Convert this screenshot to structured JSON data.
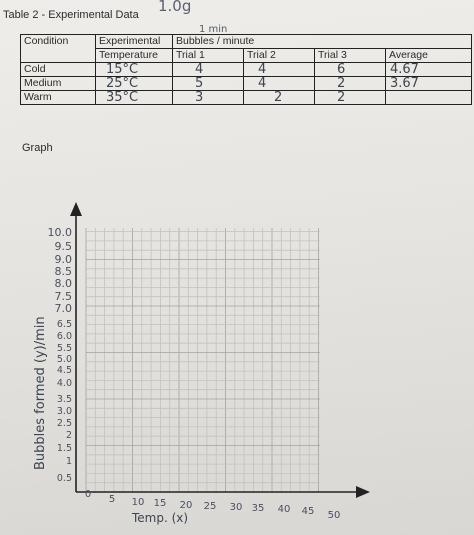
{
  "table_title": "Table 2 - Experimental Data",
  "top_scribble": "1.0g",
  "unit_note": "1 min",
  "table": {
    "headers": {
      "condition": "Condition",
      "experimental": "Experimental",
      "temperature": "Temperature",
      "bubbles": "Bubbles / minute",
      "trial1": "Trial 1",
      "trial2": "Trial 2",
      "trial3": "Trial 3",
      "average": "Average"
    },
    "rows": [
      {
        "condition": "Cold",
        "temperature": "15°C",
        "trial1": "4",
        "trial2": "4",
        "trial3": "6",
        "average": "4.67"
      },
      {
        "condition": "Medium",
        "temperature": "25°C",
        "trial1": "5",
        "trial2": "4",
        "trial3": "2",
        "average": "3.67"
      },
      {
        "condition": "Warm",
        "temperature": "35°C",
        "trial1": "3",
        "trial2": "2",
        "trial3": "2",
        "average": ""
      }
    ]
  },
  "graph_heading": "Graph",
  "graph": {
    "y_axis_label": "Bubbles formed (y)/min",
    "x_axis_label": "Temp. (x)",
    "y_ticks": [
      "10.0",
      "9.5",
      "9.0",
      "8.5",
      "8.0",
      "7.5",
      "7.0",
      "6.5",
      "6.0",
      "5.5",
      "5.0",
      "4.5",
      "4.0",
      "3.5",
      "3.0",
      "2.5",
      "2",
      "1.5",
      "1",
      "0.5"
    ],
    "x_ticks": [
      "0",
      "5",
      "10",
      "15",
      "20",
      "25",
      "30",
      "35",
      "40",
      "45",
      "50"
    ]
  }
}
